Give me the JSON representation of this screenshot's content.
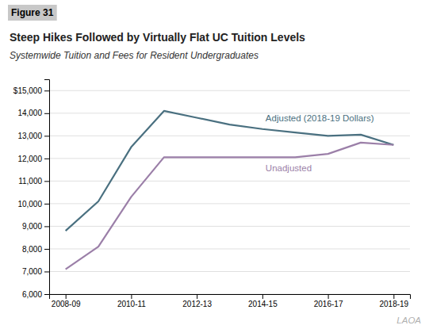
{
  "chart_data": {
    "type": "line",
    "title": "Steep Hikes Followed by Virtually Flat UC Tuition Levels",
    "subtitle": "Systemwide Tuition and Fees for Resident Undergraduates",
    "annotations": [
      "Figure 31",
      "LAOA"
    ],
    "categories": [
      "2008-09",
      null,
      "2010-11",
      null,
      "2012-13",
      null,
      "2014-15",
      null,
      "2016-17",
      null,
      "2018-19"
    ],
    "series": [
      {
        "name": "Adjusted (2018-19 Dollars)",
        "color": "#4a7080",
        "values": [
          8800,
          10100,
          12500,
          14100,
          13800,
          13500,
          13300,
          13150,
          13000,
          13050,
          12600
        ]
      },
      {
        "name": "Unadjusted",
        "color": "#9b7fa8",
        "values": [
          7100,
          8100,
          10300,
          12050,
          12050,
          12050,
          12050,
          12050,
          12200,
          12700,
          12600
        ]
      }
    ],
    "ylim": [
      6000,
      15500
    ],
    "yticks": [
      {
        "value": 6000,
        "label": "6,000"
      },
      {
        "value": 7000,
        "label": "7,000"
      },
      {
        "value": 8000,
        "label": "8,000"
      },
      {
        "value": 9000,
        "label": "9,000"
      },
      {
        "value": 10000,
        "label": "10,000"
      },
      {
        "value": 11000,
        "label": "11,000"
      },
      {
        "value": 12000,
        "label": "12,000"
      },
      {
        "value": 13000,
        "label": "13,000"
      },
      {
        "value": 14000,
        "label": "14,000"
      },
      {
        "value": 15000,
        "label": "$15,000"
      }
    ],
    "grid": true
  }
}
